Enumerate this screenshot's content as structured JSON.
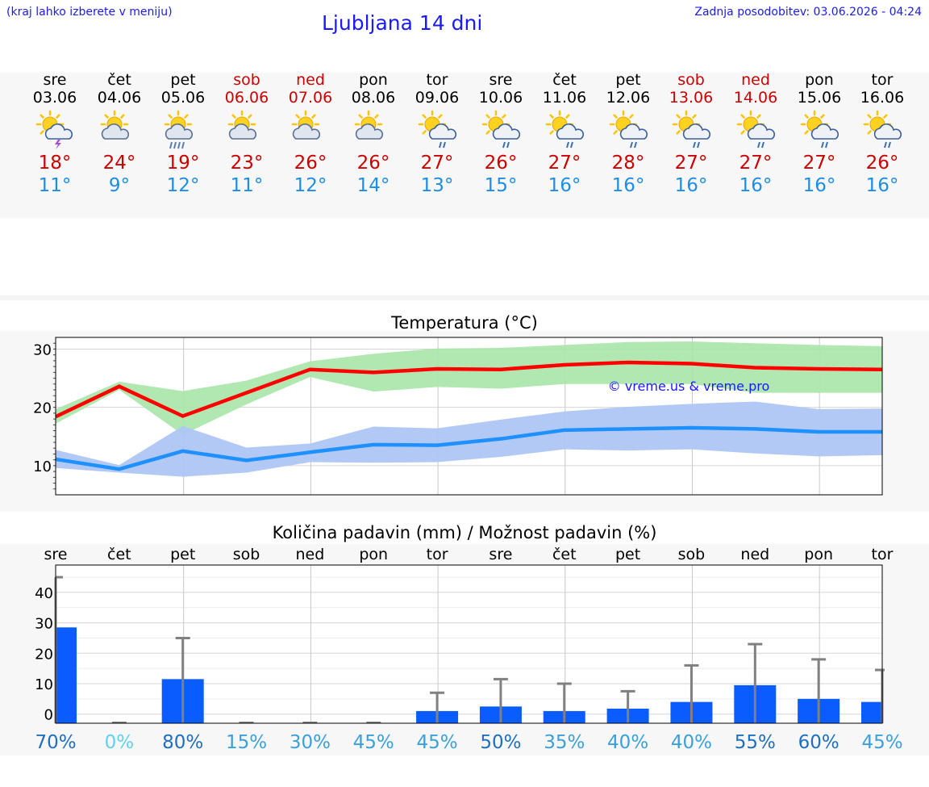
{
  "header": {
    "location_hint": "(kraj lahko izberete v meniju)",
    "title": "Ljubljana 14 dni",
    "updated": "Zadnja posodobitev: 03.06.2026 - 04:24"
  },
  "colors": {
    "link_blue": "#1a1aff",
    "max_temp": "#cc0000",
    "min_temp": "#1e8de6",
    "weekend": "#cc0000",
    "max_line": "#ff0000",
    "min_line": "#1e90ff",
    "max_band": "#a8e6a8",
    "min_band": "#aec6f5",
    "precip_bar": "#0a5cff",
    "whisker": "#808080"
  },
  "days": [
    {
      "name": "sre",
      "date": "03.06",
      "icon": "sun-cloud-thunder-icon",
      "tmax": "18°",
      "tmin": "11°",
      "weekend": false
    },
    {
      "name": "čet",
      "date": "04.06",
      "icon": "sun-cloud-icon",
      "tmax": "24°",
      "tmin": "9°",
      "weekend": false
    },
    {
      "name": "pet",
      "date": "05.06",
      "icon": "sun-cloud-heavy-rain-icon",
      "tmax": "19°",
      "tmin": "12°",
      "weekend": false
    },
    {
      "name": "sob",
      "date": "06.06",
      "icon": "sun-cloud-icon",
      "tmax": "23°",
      "tmin": "11°",
      "weekend": true
    },
    {
      "name": "ned",
      "date": "07.06",
      "icon": "sun-cloud-icon",
      "tmax": "26°",
      "tmin": "12°",
      "weekend": true
    },
    {
      "name": "pon",
      "date": "08.06",
      "icon": "sun-cloud-icon",
      "tmax": "26°",
      "tmin": "14°",
      "weekend": false
    },
    {
      "name": "tor",
      "date": "09.06",
      "icon": "sun-cloud-rain-icon",
      "tmax": "27°",
      "tmin": "13°",
      "weekend": false
    },
    {
      "name": "sre",
      "date": "10.06",
      "icon": "sun-cloud-rain-icon",
      "tmax": "26°",
      "tmin": "15°",
      "weekend": false
    },
    {
      "name": "čet",
      "date": "11.06",
      "icon": "sun-cloud-rain-icon",
      "tmax": "27°",
      "tmin": "16°",
      "weekend": false
    },
    {
      "name": "pet",
      "date": "12.06",
      "icon": "sun-cloud-rain-icon",
      "tmax": "28°",
      "tmin": "16°",
      "weekend": false
    },
    {
      "name": "sob",
      "date": "13.06",
      "icon": "sun-cloud-rain-icon",
      "tmax": "27°",
      "tmin": "16°",
      "weekend": true
    },
    {
      "name": "ned",
      "date": "14.06",
      "icon": "sun-cloud-rain-icon",
      "tmax": "27°",
      "tmin": "16°",
      "weekend": true
    },
    {
      "name": "pon",
      "date": "15.06",
      "icon": "sun-cloud-rain-icon",
      "tmax": "27°",
      "tmin": "16°",
      "weekend": false
    },
    {
      "name": "tor",
      "date": "16.06",
      "icon": "sun-cloud-rain-icon",
      "tmax": "26°",
      "tmin": "16°",
      "weekend": false
    }
  ],
  "chart_data": [
    {
      "type": "line",
      "title": "Temperatura (°C)",
      "watermark": "© vreme.us & vreme.pro",
      "ylim": [
        5,
        32
      ],
      "yticks": [
        10,
        20,
        30
      ],
      "grid": true,
      "x": [
        "03.06",
        "04.06",
        "05.06",
        "06.06",
        "07.06",
        "08.06",
        "09.06",
        "10.06",
        "11.06",
        "12.06",
        "13.06",
        "14.06",
        "15.06",
        "16.06"
      ],
      "series": [
        {
          "role": "max",
          "values": [
            18.4,
            23.6,
            18.5,
            22.5,
            26.5,
            26.0,
            26.6,
            26.5,
            27.3,
            27.7,
            27.5,
            26.8,
            26.6,
            26.5
          ]
        },
        {
          "role": "min",
          "values": [
            11.1,
            9.4,
            12.5,
            10.9,
            12.3,
            13.6,
            13.5,
            14.6,
            16.1,
            16.3,
            16.5,
            16.3,
            15.8,
            15.8
          ]
        }
      ],
      "bands": [
        {
          "role": "max-range",
          "low": [
            17.2,
            23.0,
            15.3,
            20.5,
            25.2,
            22.7,
            23.5,
            23.2,
            24.0,
            24.0,
            24.0,
            22.5,
            22.5,
            22.5
          ],
          "high": [
            19.7,
            24.4,
            22.8,
            24.6,
            27.9,
            29.2,
            30.1,
            30.2,
            30.7,
            31.2,
            31.3,
            31.0,
            30.7,
            30.5
          ]
        },
        {
          "role": "min-range",
          "low": [
            9.6,
            8.8,
            8.1,
            8.8,
            10.6,
            10.5,
            10.6,
            11.5,
            12.8,
            12.6,
            12.8,
            12.1,
            11.6,
            11.8
          ]
        },
        {
          "role": "min-range-high",
          "values": [
            12.7,
            10.1,
            16.8,
            13.1,
            13.8,
            16.7,
            16.4,
            17.9,
            19.3,
            20.1,
            20.6,
            21.0,
            19.7,
            19.8
          ]
        }
      ]
    },
    {
      "type": "bar",
      "title": "Količina padavin (mm) / Možnost padavin (%)",
      "ylim": [
        -3,
        49
      ],
      "yticks": [
        0,
        10,
        20,
        30,
        40
      ],
      "grid": true,
      "categories": [
        "sre",
        "čet",
        "pet",
        "sob",
        "ned",
        "pon",
        "tor",
        "sre",
        "čet",
        "pet",
        "sob",
        "ned",
        "pon",
        "tor"
      ],
      "values": [
        28.5,
        0,
        11.5,
        0,
        0,
        0,
        1.0,
        2.5,
        1.0,
        1.8,
        4.0,
        9.5,
        5.0,
        4.0
      ],
      "whisker_max": [
        45,
        0,
        25,
        0,
        0,
        0,
        7,
        11.5,
        10,
        7.5,
        16,
        23,
        18,
        14.5
      ],
      "probability": [
        "70%",
        "0%",
        "80%",
        "15%",
        "30%",
        "45%",
        "45%",
        "50%",
        "35%",
        "40%",
        "40%",
        "55%",
        "60%",
        "45%"
      ],
      "probability_colors": [
        "#1e6fbf",
        "#5fd0f0",
        "#1e6fbf",
        "#3aa0dc",
        "#3aa0dc",
        "#3aa0dc",
        "#3aa0dc",
        "#1e6fbf",
        "#3aa0dc",
        "#3aa0dc",
        "#3aa0dc",
        "#1e6fbf",
        "#1e6fbf",
        "#3aa0dc"
      ]
    }
  ]
}
